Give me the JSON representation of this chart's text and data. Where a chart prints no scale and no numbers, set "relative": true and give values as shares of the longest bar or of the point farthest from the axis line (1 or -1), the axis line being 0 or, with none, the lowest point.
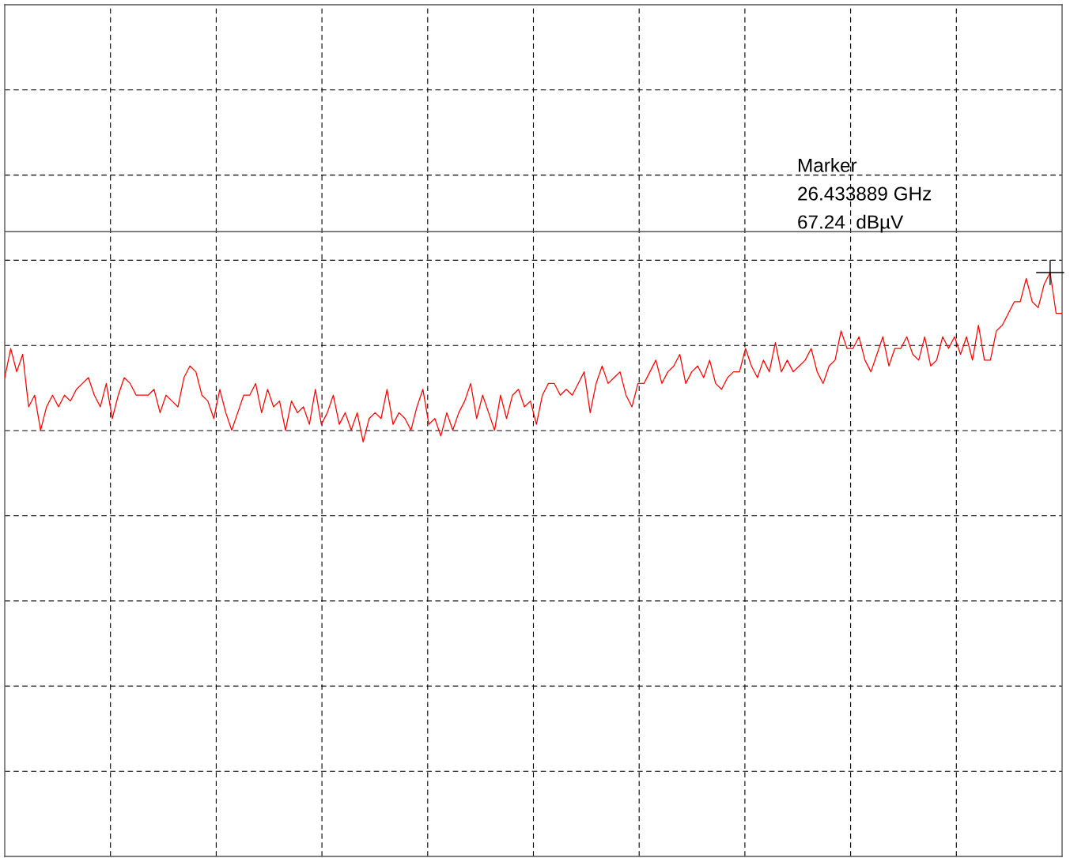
{
  "chart_data": {
    "type": "line",
    "relative": true,
    "grid": true,
    "tick_labels": false,
    "legend": false,
    "categories": [
      null,
      null,
      null,
      null,
      null,
      null,
      null,
      null,
      null,
      null,
      null,
      null,
      null,
      null,
      null,
      null,
      null,
      null,
      null,
      null,
      null,
      null,
      null,
      null,
      null,
      null,
      null,
      null,
      null,
      null,
      null,
      null,
      null,
      null,
      null,
      null,
      null,
      null,
      null,
      null,
      null,
      null,
      null,
      null,
      null,
      null,
      null,
      null,
      null,
      null,
      null,
      null,
      null,
      null,
      null,
      null,
      null,
      null,
      null,
      null,
      null,
      null,
      null,
      null,
      null,
      null,
      null,
      null,
      null,
      null,
      null,
      null,
      null,
      null,
      null,
      null,
      null,
      null,
      null,
      null,
      null,
      null,
      null,
      null,
      null,
      null,
      null,
      null,
      null,
      null,
      null,
      null,
      null,
      null,
      null,
      null,
      null,
      null,
      null,
      null,
      null,
      null,
      null,
      null,
      null,
      null,
      null,
      null,
      null,
      null,
      null,
      null,
      null,
      null,
      null,
      null,
      null,
      null,
      null,
      null,
      null,
      null,
      null,
      null,
      null,
      null,
      null,
      null,
      null,
      null,
      null,
      null,
      null,
      null,
      null,
      null,
      null,
      null,
      null,
      null,
      null,
      null,
      null,
      null,
      null,
      null,
      null,
      null,
      null,
      null,
      null,
      null,
      null,
      null,
      null,
      null,
      null,
      null,
      null,
      null,
      null,
      null,
      null,
      null,
      null,
      null,
      null,
      null,
      null,
      null,
      null,
      null,
      null,
      null,
      null,
      null,
      null,
      null
    ],
    "series": [
      {
        "color": "#ff0000",
        "marker": "none",
        "line_style": "solid",
        "values": [
          0.82,
          0.87,
          0.83,
          0.86,
          0.77,
          0.79,
          0.73,
          0.77,
          0.79,
          0.77,
          0.79,
          0.78,
          0.8,
          0.81,
          0.82,
          0.79,
          0.77,
          0.81,
          0.75,
          0.79,
          0.82,
          0.81,
          0.79,
          0.79,
          0.79,
          0.8,
          0.76,
          0.79,
          0.78,
          0.77,
          0.82,
          0.84,
          0.83,
          0.79,
          0.78,
          0.75,
          0.8,
          0.76,
          0.73,
          0.76,
          0.79,
          0.79,
          0.81,
          0.76,
          0.8,
          0.77,
          0.78,
          0.73,
          0.78,
          0.76,
          0.77,
          0.74,
          0.8,
          0.74,
          0.76,
          0.79,
          0.74,
          0.76,
          0.73,
          0.76,
          0.71,
          0.75,
          0.76,
          0.75,
          0.8,
          0.74,
          0.76,
          0.75,
          0.73,
          0.77,
          0.8,
          0.74,
          0.75,
          0.72,
          0.76,
          0.73,
          0.76,
          0.78,
          0.81,
          0.75,
          0.79,
          0.76,
          0.73,
          0.79,
          0.75,
          0.79,
          0.8,
          0.77,
          0.78,
          0.74,
          0.79,
          0.81,
          0.81,
          0.79,
          0.8,
          0.79,
          0.81,
          0.83,
          0.76,
          0.81,
          0.84,
          0.81,
          0.82,
          0.83,
          0.79,
          0.77,
          0.81,
          0.81,
          0.83,
          0.85,
          0.81,
          0.83,
          0.84,
          0.86,
          0.81,
          0.83,
          0.84,
          0.82,
          0.85,
          0.81,
          0.8,
          0.82,
          0.83,
          0.83,
          0.87,
          0.84,
          0.82,
          0.85,
          0.83,
          0.88,
          0.83,
          0.85,
          0.83,
          0.84,
          0.85,
          0.87,
          0.83,
          0.81,
          0.84,
          0.85,
          0.9,
          0.87,
          0.87,
          0.89,
          0.85,
          0.83,
          0.86,
          0.89,
          0.84,
          0.87,
          0.87,
          0.89,
          0.86,
          0.85,
          0.89,
          0.84,
          0.85,
          0.89,
          0.87,
          0.89,
          0.86,
          0.89,
          0.85,
          0.91,
          0.85,
          0.85,
          0.9,
          0.91,
          0.93,
          0.95,
          0.95,
          0.99,
          0.95,
          0.94,
          0.98,
          1,
          0.93,
          0.93
        ]
      }
    ],
    "ref_lines": [
      {
        "axis": "y",
        "value": 1.07,
        "color": "#555555",
        "line_style": "solid"
      }
    ],
    "annotations": [
      "Marker\n26.433889 GHz\n67.24  dBµV"
    ]
  }
}
